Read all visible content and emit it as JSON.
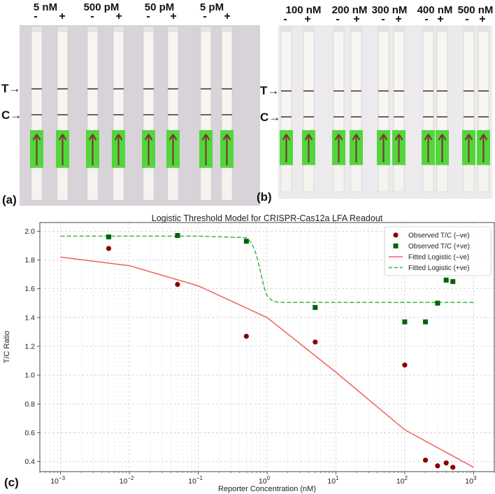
{
  "panel_a": {
    "label": "(a)",
    "concentrations": [
      "5 nM",
      "500 pM",
      "50 pM",
      "5 pM"
    ],
    "signs": [
      "-",
      "+",
      "-",
      "+",
      "-",
      "+",
      "-",
      "+"
    ],
    "t_marker": "T→",
    "c_marker": "C→",
    "colors": {
      "background": "#d7d3d8",
      "strip": "#f6f5f1",
      "pad": "#53d63c",
      "line": "#6b5f66"
    }
  },
  "panel_b": {
    "label": "(b)",
    "concentrations": [
      "100 nM",
      "200 nM",
      "300 nM",
      "400 nM",
      "500 nM"
    ],
    "signs": [
      "-",
      "+",
      "-",
      "+",
      "-",
      "+",
      "-",
      "+",
      "-",
      "+"
    ],
    "t_marker": "T→",
    "c_marker": "C→",
    "colors": {
      "background": "#eceaec",
      "strip": "#f7f6f3",
      "pad": "#53d63c",
      "line": "#6b5f66"
    }
  },
  "panel_c": {
    "label": "(c)"
  },
  "chart_data": {
    "type": "scatter",
    "title": "Logistic Threshold Model for CRISPR-Cas12a LFA Readout",
    "xlabel": "Reporter Concentration (nM)",
    "ylabel": "T/C Ratio",
    "xscale": "log",
    "xlim": [
      0.0005,
      2000
    ],
    "ylim": [
      0.33,
      2.06
    ],
    "xticks": [
      0.001,
      0.01,
      0.1,
      1,
      10,
      100,
      1000
    ],
    "xtick_labels": [
      [
        "10",
        "−3"
      ],
      [
        "10",
        "−2"
      ],
      [
        "10",
        "−1"
      ],
      [
        "10",
        "0"
      ],
      [
        "10",
        "1"
      ],
      [
        "10",
        "2"
      ],
      [
        "10",
        "3"
      ]
    ],
    "yticks": [
      0.4,
      0.6,
      0.8,
      1.0,
      1.2,
      1.4,
      1.6,
      1.8,
      2.0
    ],
    "ytick_labels": [
      "0.4",
      "0.6",
      "0.8",
      "1.0",
      "1.2",
      "1.4",
      "1.6",
      "1.8",
      "2.0"
    ],
    "grid": true,
    "legend_position": "top-right",
    "series": [
      {
        "name": "Observed T/C (–ve)",
        "kind": "scatter",
        "marker": "circle",
        "color": "#8b0000",
        "x": [
          0.005,
          0.05,
          0.5,
          5,
          100,
          200,
          300,
          400,
          500
        ],
        "y": [
          1.88,
          1.63,
          1.27,
          1.23,
          1.07,
          0.41,
          0.37,
          0.39,
          0.36
        ]
      },
      {
        "name": "Observed T/C (+ve)",
        "kind": "scatter",
        "marker": "square",
        "color": "#006400",
        "x": [
          0.005,
          0.05,
          0.5,
          5,
          100,
          200,
          300,
          400,
          500
        ],
        "y": [
          1.96,
          1.97,
          1.93,
          1.47,
          1.37,
          1.37,
          1.5,
          1.66,
          1.65
        ]
      },
      {
        "name": "Fitted Logistic (–ve)",
        "kind": "line",
        "style": "solid",
        "color": "#f0625a",
        "x": [
          0.001,
          0.01,
          0.1,
          1,
          10,
          100,
          1000
        ],
        "y": [
          1.82,
          1.76,
          1.62,
          1.4,
          1.02,
          0.62,
          0.36
        ]
      },
      {
        "name": "Fitted Logistic (+ve)",
        "kind": "line",
        "style": "dashed",
        "color": "#3cb44b",
        "x": [
          0.001,
          0.01,
          0.1,
          0.5,
          0.6,
          0.7,
          0.8,
          0.9,
          1.0,
          1.2,
          1.5,
          10,
          100,
          1000
        ],
        "y": [
          1.965,
          1.965,
          1.965,
          1.955,
          1.915,
          1.835,
          1.72,
          1.615,
          1.55,
          1.515,
          1.505,
          1.505,
          1.505,
          1.505
        ]
      }
    ]
  }
}
